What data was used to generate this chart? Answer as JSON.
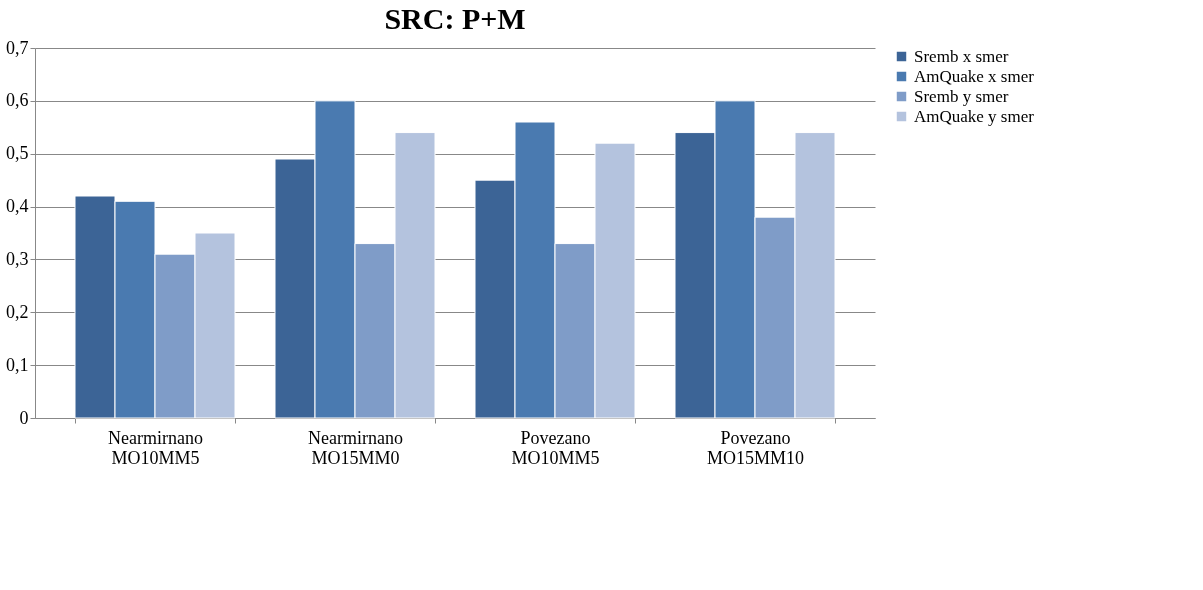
{
  "chart_data": {
    "type": "bar",
    "title": "SRC: P+M",
    "categories": [
      "Nearmirnano MO10MM5",
      "Nearmirnano MO15MM0",
      "Povezano MO10MM5",
      "Povezano MO15MM10"
    ],
    "series": [
      {
        "name": "Sremb x smer",
        "color": "#3c6496",
        "values": [
          0.42,
          0.49,
          0.45,
          0.54
        ]
      },
      {
        "name": "AmQuake x smer",
        "color": "#4a7ab0",
        "values": [
          0.41,
          0.6,
          0.56,
          0.6
        ]
      },
      {
        "name": "Sremb y smer",
        "color": "#7f9cc8",
        "values": [
          0.31,
          0.33,
          0.33,
          0.38
        ]
      },
      {
        "name": "AmQuake y smer",
        "color": "#b4c3de",
        "values": [
          0.35,
          0.54,
          0.52,
          0.54
        ]
      }
    ],
    "ylim": [
      0,
      0.7
    ],
    "yticks": [
      {
        "value": 0,
        "label": "0"
      },
      {
        "value": 0.1,
        "label": "0,1"
      },
      {
        "value": 0.2,
        "label": "0,2"
      },
      {
        "value": 0.3,
        "label": "0,3"
      },
      {
        "value": 0.4,
        "label": "0,4"
      },
      {
        "value": 0.5,
        "label": "0,5"
      },
      {
        "value": 0.6,
        "label": "0,6"
      },
      {
        "value": 0.7,
        "label": "0,7"
      }
    ],
    "grid": "y",
    "legend": "right"
  }
}
